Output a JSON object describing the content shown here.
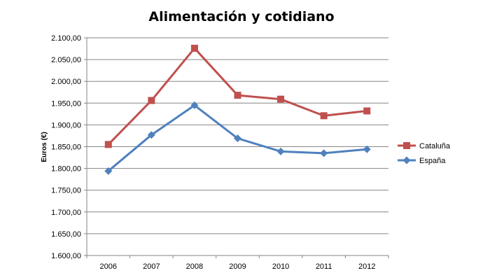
{
  "chart_data": {
    "type": "line",
    "title": "Alimentación y cotidiano",
    "xlabel": "",
    "ylabel": "Euros (€)",
    "categories": [
      "2006",
      "2007",
      "2008",
      "2009",
      "2010",
      "2011",
      "2012"
    ],
    "ylim": [
      1600,
      2100
    ],
    "ytick_labels": [
      "1.600,00",
      "1.650,00",
      "1.700,00",
      "1.750,00",
      "1.800,00",
      "1.850,00",
      "1.900,00",
      "1.950,00",
      "2.000,00",
      "2.050,00",
      "2.100,00"
    ],
    "grid": "horizontal",
    "legend_position": "right",
    "series": [
      {
        "name": "Cataluña",
        "color": "#c0504d",
        "marker": "square",
        "values": [
          1855,
          1956,
          2076,
          1968,
          1959,
          1921,
          1932
        ]
      },
      {
        "name": "España",
        "color": "#4f81bd",
        "marker": "diamond",
        "values": [
          1794,
          1877,
          1945,
          1869,
          1839,
          1835,
          1844
        ]
      }
    ]
  }
}
